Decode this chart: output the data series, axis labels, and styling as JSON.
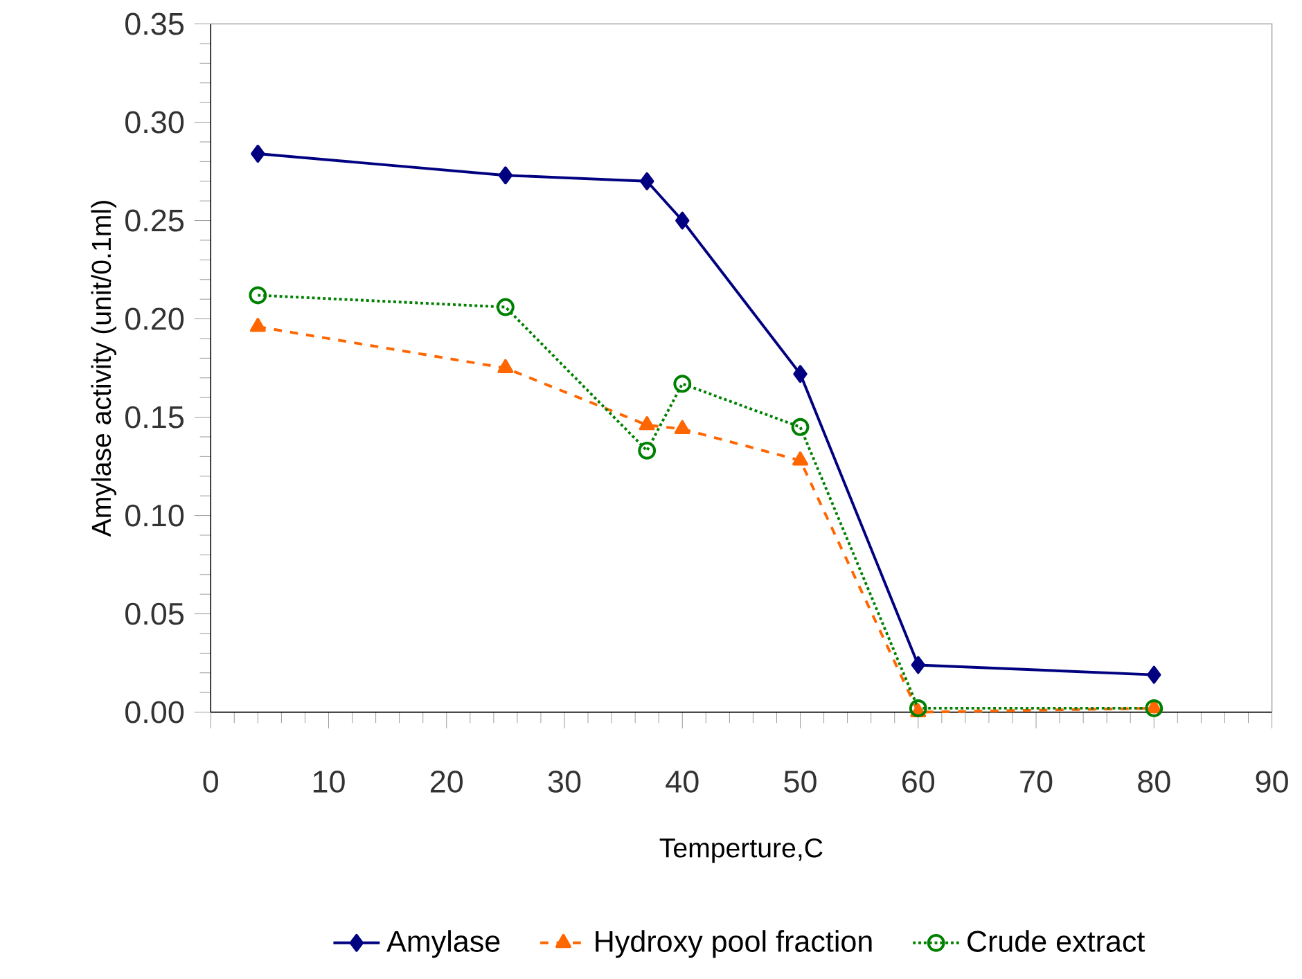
{
  "chart_data": {
    "type": "line",
    "xlabel": "Temperture,C",
    "ylabel": "Amylase activity (unit/0.1ml)",
    "x": [
      4,
      25,
      37,
      40,
      50,
      60,
      80
    ],
    "series": [
      {
        "name": "Amylase",
        "color": "#000080",
        "marker": "diamond",
        "line_style": "solid",
        "values": [
          0.284,
          0.273,
          0.27,
          0.25,
          0.172,
          0.024,
          0.019
        ]
      },
      {
        "name": "Hydroxy pool fraction",
        "color": "#ff6600",
        "marker": "triangle",
        "line_style": "dashed",
        "values": [
          0.196,
          0.175,
          0.146,
          0.144,
          0.128,
          0.0,
          0.002
        ]
      },
      {
        "name": "Crude extract",
        "color": "#008000",
        "marker": "circle",
        "line_style": "dotted",
        "values": [
          0.212,
          0.206,
          0.133,
          0.167,
          0.145,
          0.002,
          0.002
        ]
      }
    ],
    "xlim": [
      0,
      90
    ],
    "xticks": [
      0,
      10,
      20,
      30,
      40,
      50,
      60,
      70,
      80,
      90
    ],
    "ylim": [
      0,
      0.35
    ],
    "yticks": [
      {
        "value": 0,
        "label": "0.00"
      },
      {
        "value": 0.05,
        "label": "0.05"
      },
      {
        "value": 0.1,
        "label": "0.10"
      },
      {
        "value": 0.15,
        "label": "0.15"
      },
      {
        "value": 0.2,
        "label": "0.20"
      },
      {
        "value": 0.25,
        "label": "0.25"
      },
      {
        "value": 0.3,
        "label": "0.30"
      },
      {
        "value": 0.35,
        "label": "0.35"
      }
    ],
    "grid": false,
    "legend": "bottom"
  }
}
